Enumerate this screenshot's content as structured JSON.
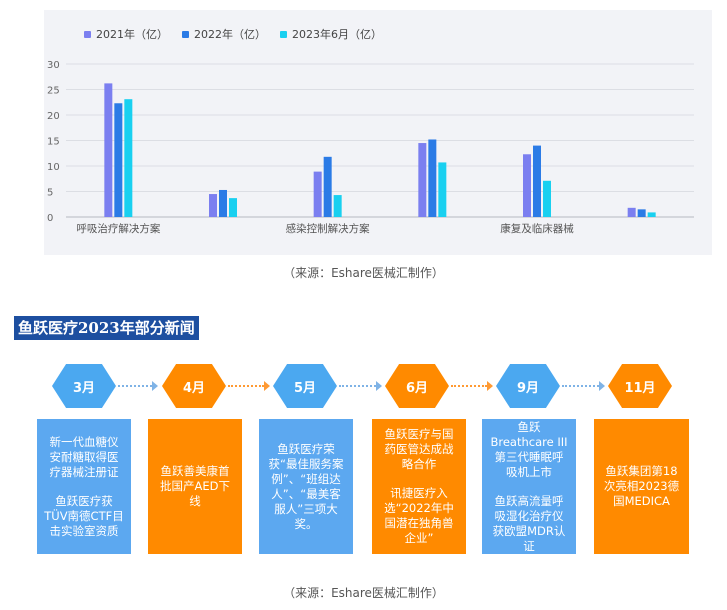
{
  "chart_data": {
    "type": "bar",
    "categories": [
      "呼吸治疗解决方案",
      "",
      "感染控制解决方案",
      "",
      "康复及临床器械",
      ""
    ],
    "series": [
      {
        "name": "2021年（亿）",
        "values": [
          26.2,
          4.5,
          8.9,
          14.5,
          12.3,
          1.8
        ]
      },
      {
        "name": "2022年（亿）",
        "values": [
          22.3,
          5.3,
          11.8,
          15.2,
          14.0,
          1.5
        ]
      },
      {
        "name": "2023年6月（亿）",
        "values": [
          23.1,
          3.7,
          4.3,
          10.7,
          7.1,
          0.9
        ]
      }
    ],
    "colors": [
      "#7b7ff0",
      "#2b7be6",
      "#19d0f0"
    ],
    "yticks": [
      "30",
      "25",
      "20",
      "15",
      "10",
      "5",
      "0"
    ],
    "ylim": [
      0,
      30
    ],
    "grid": true,
    "legend_position": "top-left"
  },
  "captions": {
    "chart": "（来源：Eshare医械汇制作）",
    "timeline": "（来源：Eshare医械汇制作）"
  },
  "section": {
    "title": "鱼跃医疗2023年部分新闻"
  },
  "timeline": [
    {
      "month": "3月",
      "lines": [
        "新一代血糖仪安耐糖取得医疗器械注册证",
        "鱼跃医疗获TÜV南德CTF目击实验室资质"
      ]
    },
    {
      "month": "4月",
      "lines": [
        "鱼跃善美康首批国产AED下线"
      ]
    },
    {
      "month": "5月",
      "lines": [
        "鱼跃医疗荣获“最佳服务案例”、“班组达人”、“最美客服人”三项大奖。"
      ]
    },
    {
      "month": "6月",
      "lines": [
        "鱼跃医疗与国药医管达成战略合作",
        "讯捷医疗入选“2022年中国潜在独角兽企业”"
      ]
    },
    {
      "month": "9月",
      "lines": [
        "鱼跃Breathcare III第三代睡眠呼吸机上市",
        "鱼跃高流量呼吸湿化治疗仪获欧盟MDR认证"
      ]
    },
    {
      "month": "11月",
      "lines": [
        "鱼跃集团第18次亮相2023德国MEDICA"
      ]
    }
  ]
}
